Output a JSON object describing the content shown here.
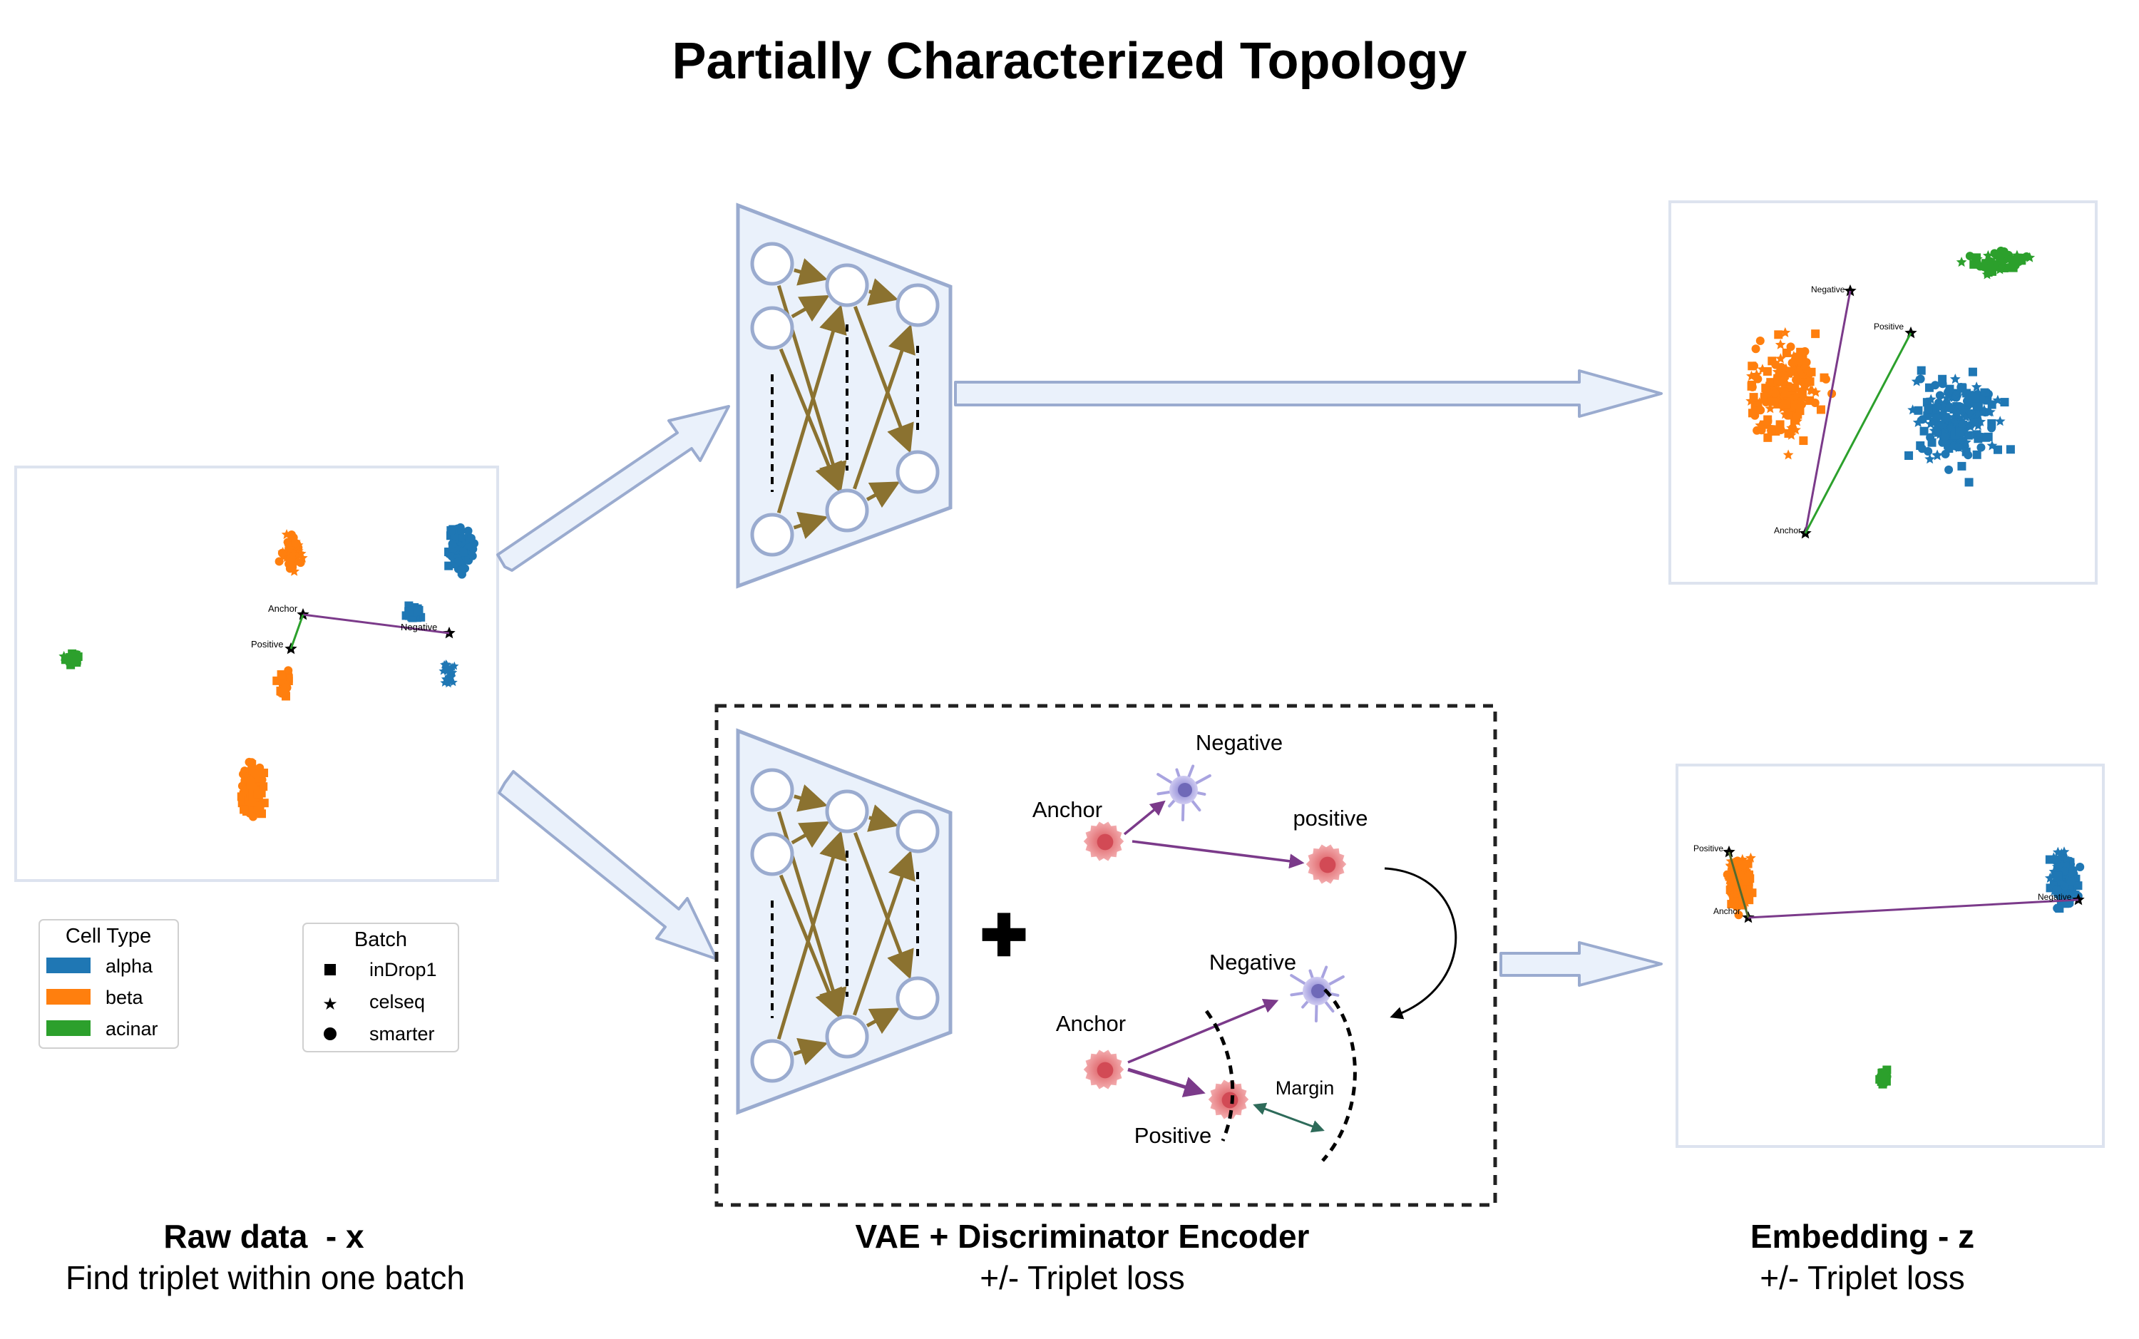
{
  "title": "Partially Characterized Topology",
  "raw_panel": {
    "anchor_label": "Anchor",
    "positive_label": "Positive",
    "negative_label": "Negative"
  },
  "legend_cell_type": {
    "title": "Cell Type",
    "items": [
      {
        "label": "alpha",
        "color": "#1f77b4"
      },
      {
        "label": "beta",
        "color": "#ff7f0e"
      },
      {
        "label": "acinar",
        "color": "#2ca02c"
      }
    ]
  },
  "legend_batch": {
    "title": "Batch",
    "items": [
      {
        "label": "inDrop1",
        "marker": "square"
      },
      {
        "label": "celseq",
        "marker": "star"
      },
      {
        "label": "smarter",
        "marker": "circle"
      }
    ]
  },
  "triplet_diagram": {
    "negative_top": "Negative",
    "anchor_top": "Anchor",
    "positive_top": "positive",
    "negative_bottom": "Negative",
    "anchor_bottom": "Anchor",
    "positive_bottom": "Positive",
    "margin": "Margin"
  },
  "top_embedding": {
    "anchor_label": "Anchor",
    "positive_label": "Positive",
    "negative_label": "Negative"
  },
  "bottom_embedding": {
    "anchor_label": "Anchor",
    "positive_label": "Positive",
    "negative_label": "Negative"
  },
  "captions": {
    "raw_title": "Raw data  - x",
    "raw_sub": "Find triplet within one batch",
    "vae_title": "VAE + Discriminator Encoder",
    "vae_sub": "+/- Triplet loss",
    "emb_title": "Embedding - z",
    "emb_sub": "+/- Triplet loss"
  },
  "plus_sign": "✚",
  "colors": {
    "alpha": "#1f77b4",
    "beta": "#ff7f0e",
    "acinar": "#2ca02c",
    "panel_border": "#dde3ef",
    "encoder_fill": "#eaf1fb",
    "encoder_stroke": "#9aabcf",
    "edge": "#8b7230",
    "triplet_arrow": "#7b3a8a",
    "margin_arrow": "#2e6b5a"
  }
}
